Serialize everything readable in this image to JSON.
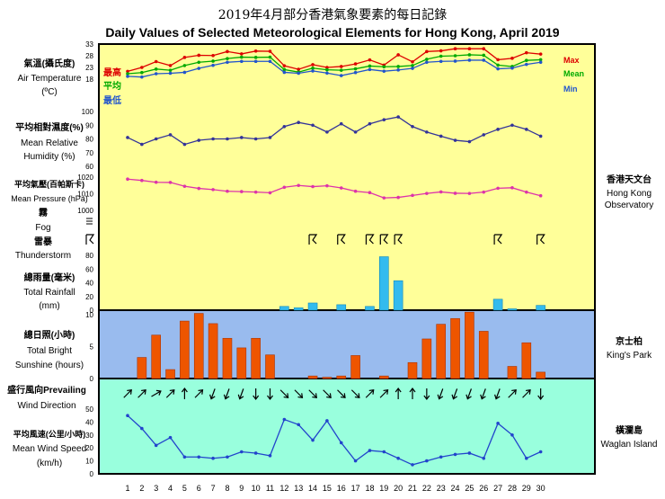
{
  "title_cn": "2019年4月部分香港氣象要素的每日記錄",
  "title_en": "Daily Values of Selected Meteorological Elements for Hong Kong, April 2019",
  "stations": {
    "hko": {
      "cn": "香港天文台",
      "en1": "Hong Kong",
      "en2": "Observatory"
    },
    "kp": {
      "cn": "京士柏",
      "en": "King's Park"
    },
    "wi": {
      "cn": "橫瀾島",
      "en": "Waglan Island"
    }
  },
  "labels": {
    "temp": {
      "cn": "氣溫(攝氏度)",
      "en1": "Air Temperature",
      "en2": "(ºC)"
    },
    "rh": {
      "cn": "平均相對濕度(%)",
      "en1": "Mean Relative",
      "en2": "Humidity  (%)"
    },
    "pres": {
      "cn": "平均氣壓(百帕斯卡)",
      "en": "Mean Pressure (hPa)"
    },
    "fog": {
      "cn": "霧",
      "en": "Fog"
    },
    "thunder": {
      "cn": "雷暴",
      "en": "Thunderstorm"
    },
    "rain": {
      "cn": "總雨量(毫米)",
      "en1": "Total Rainfall",
      "en2": "(mm)"
    },
    "sun": {
      "cn": "總日照(小時)",
      "en1": "Total Bright",
      "en2": "Sunshine  (hours)"
    },
    "wdir": {
      "cn": "盛行風向Prevailing",
      "en": "Wind Direction"
    },
    "wspd": {
      "cn": "平均風速(公里/小時)",
      "en1": "Mean Wind Speed",
      "en2": "(km/h)"
    }
  },
  "colors": {
    "yellow": "#ffff99",
    "blue": "#99bbee",
    "green": "#99ffdd",
    "max": "#dd0000",
    "mean": "#00aa00",
    "min": "#2255cc",
    "rh": "#333399",
    "pres": "#dd33aa",
    "rain": "#33bbee",
    "sun": "#ee5500",
    "wind": "#2244cc"
  },
  "chart_data": {
    "type": "multi-panel",
    "days": [
      "1",
      "2",
      "3",
      "4",
      "5",
      "6",
      "7",
      "8",
      "9",
      "10",
      "11",
      "12",
      "13",
      "14",
      "15",
      "16",
      "17",
      "18",
      "19",
      "20",
      "21",
      "22",
      "23",
      "24",
      "25",
      "26",
      "27",
      "28",
      "29",
      "30"
    ],
    "temperature": {
      "ylim": [
        18,
        33
      ],
      "ticks": [
        "33",
        "28",
        "23",
        "18"
      ],
      "legend_cn": {
        "max": "最高",
        "mean": "平均",
        "min": "最低"
      },
      "legend_en": {
        "max": "Max",
        "mean": "Mean",
        "min": "Min"
      },
      "max": [
        21.3,
        23.0,
        25.5,
        23.8,
        27.3,
        28.2,
        28.1,
        29.8,
        28.8,
        30.0,
        29.9,
        23.7,
        22.2,
        24.2,
        23.0,
        23.4,
        24.5,
        26.2,
        24.0,
        28.4,
        25.4,
        29.8,
        30.1,
        31.0,
        31.0,
        31.0,
        26.3,
        26.9,
        29.3,
        28.7
      ],
      "mean": [
        20.3,
        20.8,
        22.3,
        21.8,
        23.8,
        25.2,
        25.7,
        26.8,
        27.4,
        27.3,
        27.4,
        22.1,
        21.0,
        22.7,
        22.0,
        21.8,
        22.4,
        23.6,
        23.3,
        23.4,
        23.8,
        26.5,
        27.8,
        28.0,
        28.4,
        28.2,
        24.0,
        23.4,
        26.0,
        26.3
      ],
      "min": [
        19.2,
        18.9,
        20.3,
        20.5,
        20.9,
        22.6,
        23.9,
        25.2,
        25.6,
        25.6,
        25.6,
        20.9,
        20.5,
        21.5,
        20.6,
        19.5,
        20.8,
        22.1,
        21.4,
        21.9,
        22.6,
        25.2,
        25.6,
        25.7,
        26.1,
        26.1,
        22.4,
        22.7,
        24.3,
        25.2
      ]
    },
    "humidity": {
      "ylim": [
        60,
        100
      ],
      "ticks": [
        "100",
        "90",
        "80",
        "70",
        "60"
      ],
      "values": [
        81,
        76,
        80,
        83,
        76,
        79,
        80,
        80,
        81,
        80,
        81,
        89,
        92,
        90,
        85,
        91,
        85,
        91,
        94,
        96,
        89,
        85,
        82,
        79,
        78,
        83,
        87,
        90,
        87,
        82
      ]
    },
    "pressure": {
      "ylim": [
        1000,
        1020
      ],
      "ticks": [
        "1020",
        "1010",
        "1000"
      ],
      "values": [
        1018.8,
        1018.0,
        1016.9,
        1016.8,
        1014.5,
        1013.2,
        1012.5,
        1011.5,
        1011.3,
        1011.0,
        1010.6,
        1013.9,
        1015.0,
        1014.3,
        1014.8,
        1013.5,
        1011.5,
        1010.7,
        1007.5,
        1007.8,
        1009.0,
        1010.2,
        1011.1,
        1010.3,
        1010.2,
        1011.0,
        1013.3,
        1013.6,
        1011.0,
        1008.8
      ]
    },
    "fog_days": [],
    "thunderstorm_days": [
      "14",
      "16",
      "18",
      "19",
      "20",
      "27",
      "30"
    ],
    "rainfall": {
      "ylim": [
        0,
        80
      ],
      "ticks": [
        "80",
        "60",
        "40",
        "20",
        "0"
      ],
      "values": [
        0,
        0,
        0,
        0,
        0,
        0,
        0,
        0,
        0,
        0,
        0,
        5.5,
        3.5,
        10.5,
        0,
        8.0,
        0,
        5.5,
        78.0,
        43.0,
        0,
        0,
        0,
        0,
        0,
        0,
        16.0,
        2.0,
        0,
        7.0
      ]
    },
    "sunshine": {
      "ylim": [
        0,
        10
      ],
      "ticks": [
        "10",
        "5",
        "0"
      ],
      "values": [
        0,
        3.3,
        6.8,
        1.4,
        9.0,
        10.2,
        8.6,
        6.3,
        4.8,
        6.3,
        3.7,
        0,
        0,
        0.4,
        0.2,
        0.4,
        3.6,
        0,
        0.4,
        0,
        2.5,
        6.2,
        8.5,
        9.4,
        10.4,
        7.4,
        0,
        1.9,
        5.6,
        1.0
      ]
    },
    "wind_direction_deg": [
      45,
      45,
      60,
      45,
      0,
      45,
      200,
      200,
      200,
      180,
      180,
      135,
      135,
      135,
      135,
      135,
      135,
      45,
      45,
      0,
      0,
      180,
      200,
      200,
      200,
      200,
      200,
      45,
      45,
      180
    ],
    "wind_speed": {
      "ylim": [
        0,
        50
      ],
      "ticks": [
        "50",
        "40",
        "30",
        "20",
        "10",
        "0"
      ],
      "values": [
        45,
        35,
        22,
        28,
        13,
        13,
        12,
        13,
        17,
        16,
        14,
        42,
        38,
        26,
        41,
        24,
        10,
        18,
        17,
        12,
        7,
        10,
        13,
        15,
        16,
        12,
        39,
        30,
        12,
        17
      ]
    }
  }
}
